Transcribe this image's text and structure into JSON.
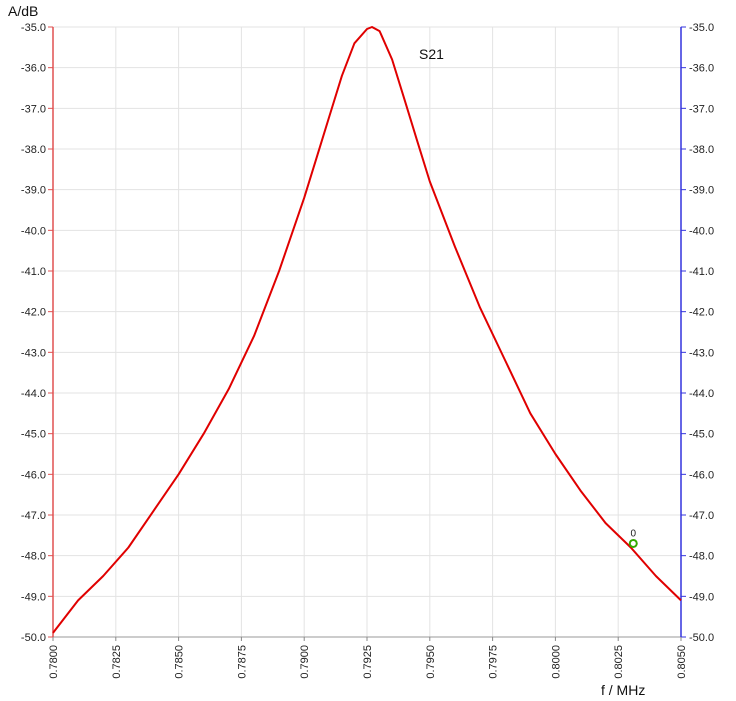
{
  "chart_data": {
    "type": "line",
    "ylabel": "A/dB",
    "xlabel": "f / MHz",
    "xlim": [
      0.78,
      0.805
    ],
    "ylim": [
      -50.0,
      -35.0
    ],
    "x_ticks": [
      "0.7800",
      "0.7825",
      "0.7850",
      "0.7875",
      "0.7900",
      "0.7925",
      "0.7950",
      "0.7975",
      "0.8000",
      "0.8025",
      "0.8050"
    ],
    "y_ticks": [
      "-35.0",
      "-36.0",
      "-37.0",
      "-38.0",
      "-39.0",
      "-40.0",
      "-41.0",
      "-42.0",
      "-43.0",
      "-44.0",
      "-45.0",
      "-46.0",
      "-47.0",
      "-48.0",
      "-49.0",
      "-50.0"
    ],
    "grid": true,
    "colors": {
      "series": "#e00000",
      "left_axis": "#e05050",
      "right_axis": "#3333dd",
      "marker": "#33aa00",
      "grid": "#e3e3e3"
    },
    "series": [
      {
        "name": "S21",
        "x": [
          0.78,
          0.781,
          0.782,
          0.783,
          0.784,
          0.785,
          0.786,
          0.787,
          0.788,
          0.789,
          0.79,
          0.7905,
          0.791,
          0.7915,
          0.792,
          0.7925,
          0.7927,
          0.793,
          0.7935,
          0.794,
          0.7945,
          0.795,
          0.796,
          0.797,
          0.798,
          0.799,
          0.8,
          0.801,
          0.802,
          0.803,
          0.804,
          0.805
        ],
        "y": [
          -49.9,
          -49.1,
          -48.5,
          -47.8,
          -46.9,
          -46.0,
          -45.0,
          -43.9,
          -42.6,
          -41.0,
          -39.2,
          -38.2,
          -37.2,
          -36.2,
          -35.4,
          -35.05,
          -35.0,
          -35.1,
          -35.8,
          -36.8,
          -37.8,
          -38.8,
          -40.4,
          -41.9,
          -43.2,
          -44.5,
          -45.5,
          -46.4,
          -47.2,
          -47.8,
          -48.5,
          -49.1
        ]
      }
    ],
    "markers": [
      {
        "label": "0",
        "x": 0.8031,
        "y": -47.7
      }
    ]
  }
}
